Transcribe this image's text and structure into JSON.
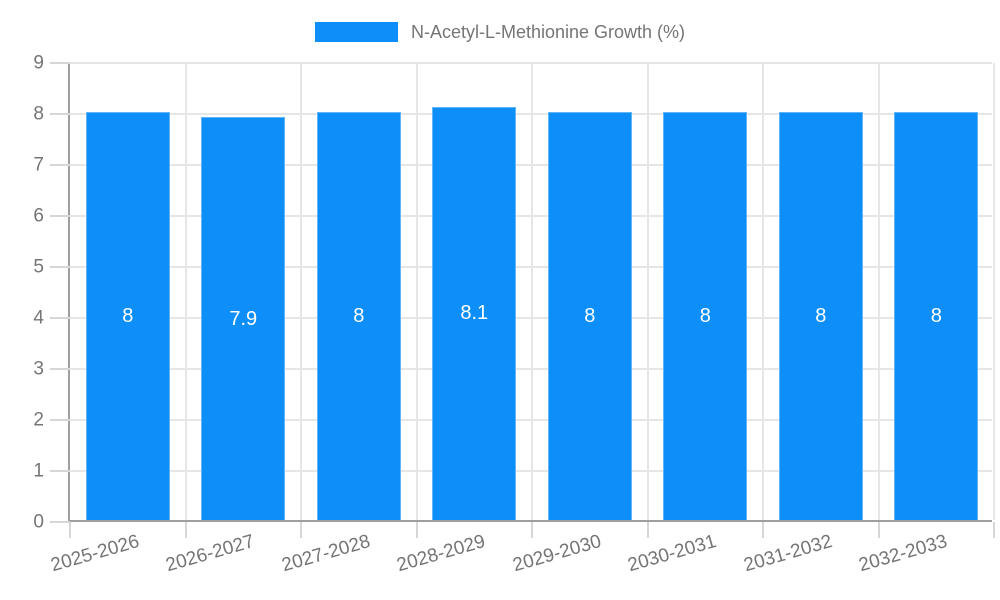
{
  "chart_data": {
    "type": "bar",
    "title": "",
    "legend": {
      "position": "top",
      "label": "N-Acetyl-L-Methionine Growth (%)"
    },
    "categories": [
      "2025-2026",
      "2026-2027",
      "2027-2028",
      "2028-2029",
      "2029-2030",
      "2030-2031",
      "2031-2032",
      "2032-2033"
    ],
    "values": [
      8,
      7.9,
      8,
      8.1,
      8,
      8,
      8,
      8
    ],
    "value_labels": [
      "8",
      "7.9",
      "8",
      "8.1",
      "8",
      "8",
      "8",
      "8"
    ],
    "xlabel": "",
    "ylabel": "",
    "ylim": [
      0,
      9
    ],
    "y_tick_step": 1,
    "grid": true,
    "x_label_rotation_deg": -16,
    "bar_color": "#0d8ef9"
  },
  "colors": {
    "bar": "#0d8ef9",
    "grid": "#e6e6e6",
    "axis": "#9e9e9e",
    "tick": "#d6d6d6",
    "tick_text": "#757575",
    "value_text": "#ffffff",
    "background": "#ffffff"
  }
}
